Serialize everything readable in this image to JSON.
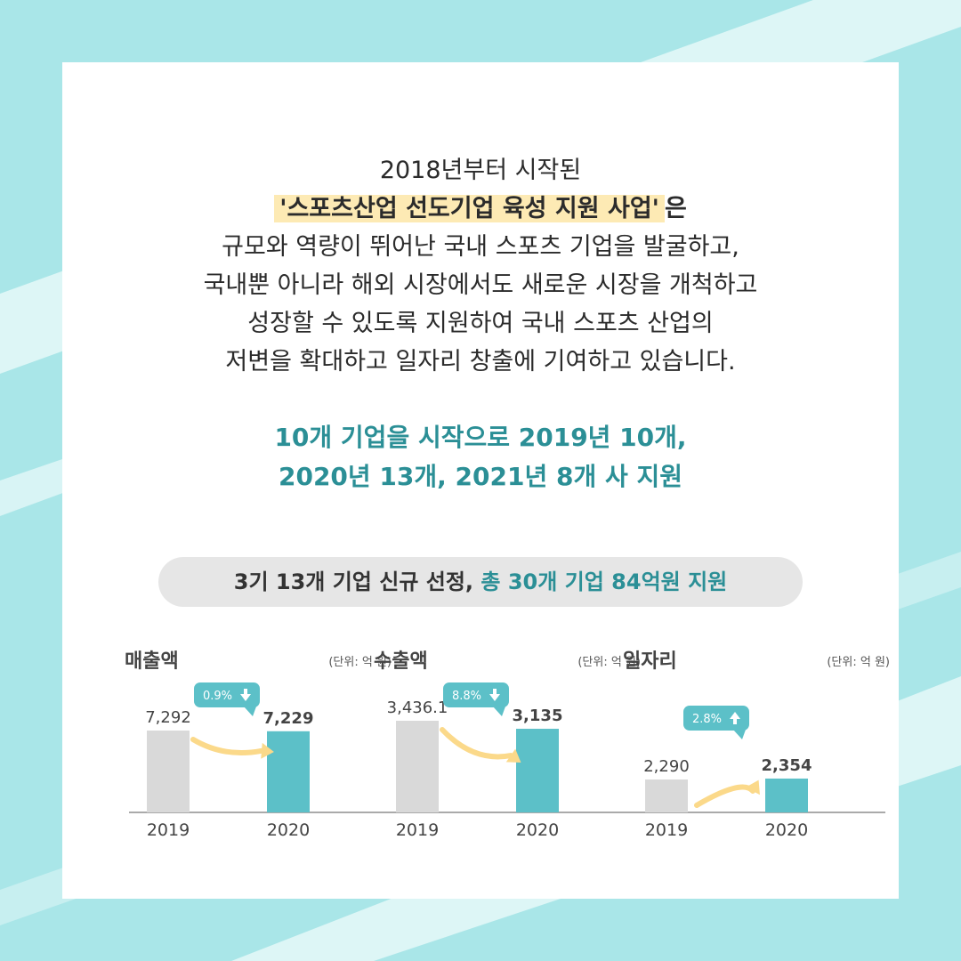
{
  "intro": {
    "line1": "2018년부터 시작된",
    "highlight": "'스포츠산업 선도기업 육성 지원 사업'",
    "line2_suffix": "은",
    "line3": "규모와 역량이 뛰어난 국내 스포츠 기업을 발굴하고,",
    "line4": "국내뿐 아니라 해외 시장에서도 새로운 시장을 개척하고",
    "line5": "성장할 수 있도록 지원하여 국내 스포츠 산업의",
    "line6": "저변을 확대하고 일자리 창출에 기여하고 있습니다."
  },
  "teal_message": {
    "line1": "10개 기업을 시작으로 2019년 10개,",
    "line2": "2020년 13개, 2021년 8개 사 지원"
  },
  "summary": {
    "prefix": "3기 13개 기업 신규 선정, ",
    "accent": "총 30개 기업 84억원 지원"
  },
  "colors": {
    "bar_2019": "#d9d9d9",
    "bar_2020": "#5cc0c8",
    "arrow": "#fbd98a",
    "bubble": "#5cc0c8",
    "teal_text": "#2b8f96",
    "highlight": "#fdeab4"
  },
  "chart_data": [
    {
      "type": "bar",
      "title": "매출액",
      "unit": "(단위: 억 원)",
      "categories": [
        "2019",
        "2020"
      ],
      "values": [
        7292,
        7229
      ],
      "value_labels": [
        "7,292",
        "7,229"
      ],
      "change": {
        "label": "0.9%",
        "direction": "down",
        "icon": "arrow-down-icon"
      }
    },
    {
      "type": "bar",
      "title": "수출액",
      "unit": "(단위: 억 원)",
      "categories": [
        "2019",
        "2020"
      ],
      "values": [
        3436.1,
        3135
      ],
      "value_labels": [
        "3,436.1",
        "3,135"
      ],
      "change": {
        "label": "8.8%",
        "direction": "down",
        "icon": "arrow-down-icon"
      }
    },
    {
      "type": "bar",
      "title": "일자리",
      "unit": "(단위: 억 원)",
      "categories": [
        "2019",
        "2020"
      ],
      "values": [
        2290,
        2354
      ],
      "value_labels": [
        "2,290",
        "2,354"
      ],
      "change": {
        "label": "2.8%",
        "direction": "up",
        "icon": "arrow-up-icon"
      }
    }
  ]
}
